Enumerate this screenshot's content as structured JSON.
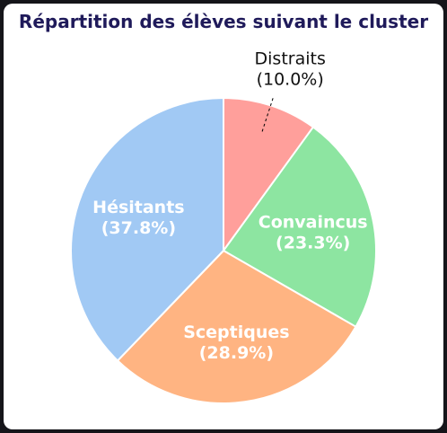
{
  "chart_data": {
    "type": "pie",
    "title": "Répartition des élèves suivant le cluster",
    "slices": [
      {
        "label": "Distraits",
        "pct_text": "(10.0%)",
        "value": 10.0,
        "color": "#ff9f9b",
        "label_position": "outside"
      },
      {
        "label": "Convaincus",
        "pct_text": "(23.3%)",
        "value": 23.3,
        "color": "#8de5a1",
        "label_position": "inside"
      },
      {
        "label": "Sceptiques",
        "pct_text": "(28.9%)",
        "value": 28.9,
        "color": "#ffb482",
        "label_position": "inside"
      },
      {
        "label": "Hésitants",
        "pct_text": "(37.8%)",
        "value": 37.8,
        "color": "#a1c9f4",
        "label_position": "inside"
      }
    ],
    "start_angle": "12 o'clock",
    "direction": "clockwise"
  }
}
